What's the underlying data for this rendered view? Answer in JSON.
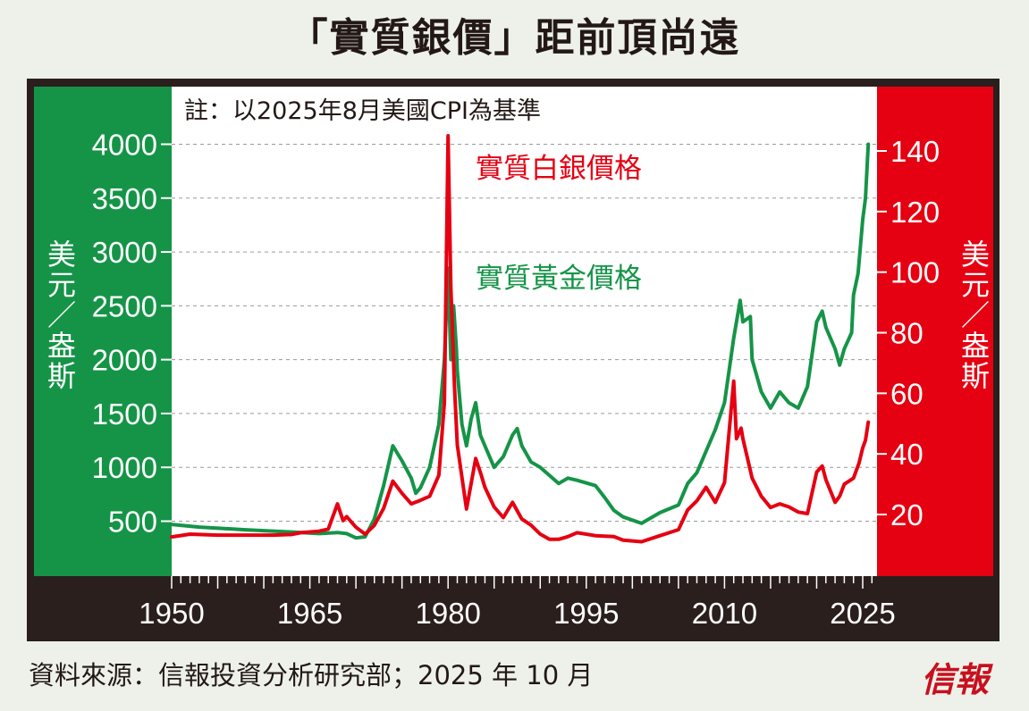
{
  "header": {
    "title": "「實質銀價」距前頂尚遠"
  },
  "note": "註：以2025年8月美國CPI為基準",
  "footer": {
    "source": "資料來源：信報投資分析研究部；2025 年 10 月",
    "logo": "信報"
  },
  "colors": {
    "gold": "#159447",
    "silver": "#e50012",
    "frame": "#2a1f1d",
    "background": "#edf1ea"
  },
  "chart_data": {
    "type": "line",
    "title": "「實質銀價」距前頂尚遠",
    "note": "註：以2025年8月美國CPI為基準",
    "xlim": [
      1950,
      2027
    ],
    "x_ticks": [
      1950,
      1965,
      1980,
      1995,
      2010,
      2025
    ],
    "left_axis": {
      "label": "美元／盎斯",
      "ylim": [
        300,
        4050
      ],
      "ticks": [
        500,
        1000,
        1500,
        2000,
        2500,
        3000,
        3500,
        4000
      ]
    },
    "right_axis": {
      "label": "美元／盎斯",
      "ylim": [
        9.9,
        154.3
      ],
      "ticks": [
        20,
        40,
        60,
        80,
        100,
        120,
        140
      ]
    },
    "grid": true,
    "series": [
      {
        "name": "實質黃金價格",
        "axis": "left",
        "color": "#159447",
        "points": [
          [
            1950,
            470
          ],
          [
            1953,
            445
          ],
          [
            1958,
            420
          ],
          [
            1963,
            400
          ],
          [
            1966,
            385
          ],
          [
            1968,
            395
          ],
          [
            1969,
            385
          ],
          [
            1970,
            345
          ],
          [
            1971,
            355
          ],
          [
            1972,
            520
          ],
          [
            1973,
            830
          ],
          [
            1974,
            1200
          ],
          [
            1974.5,
            1130
          ],
          [
            1975,
            1060
          ],
          [
            1976,
            900
          ],
          [
            1976.5,
            760
          ],
          [
            1977,
            810
          ],
          [
            1978,
            1000
          ],
          [
            1979,
            1400
          ],
          [
            1979.6,
            2000
          ],
          [
            1980.0,
            2850
          ],
          [
            1980.3,
            2000
          ],
          [
            1980.6,
            2500
          ],
          [
            1980.9,
            2100
          ],
          [
            1981,
            1900
          ],
          [
            1981.5,
            1400
          ],
          [
            1982,
            1200
          ],
          [
            1982.5,
            1450
          ],
          [
            1983,
            1600
          ],
          [
            1983.5,
            1300
          ],
          [
            1984,
            1200
          ],
          [
            1985,
            1000
          ],
          [
            1986,
            1100
          ],
          [
            1987,
            1300
          ],
          [
            1987.5,
            1360
          ],
          [
            1988,
            1200
          ],
          [
            1989,
            1050
          ],
          [
            1990,
            1000
          ],
          [
            1992,
            850
          ],
          [
            1993,
            900
          ],
          [
            1994,
            880
          ],
          [
            1996,
            830
          ],
          [
            1997,
            720
          ],
          [
            1998,
            600
          ],
          [
            1999,
            540
          ],
          [
            2001,
            480
          ],
          [
            2003,
            580
          ],
          [
            2005,
            650
          ],
          [
            2006,
            850
          ],
          [
            2007,
            950
          ],
          [
            2008,
            1150
          ],
          [
            2009,
            1350
          ],
          [
            2010,
            1600
          ],
          [
            2011,
            2200
          ],
          [
            2011.7,
            2550
          ],
          [
            2012,
            2350
          ],
          [
            2012.8,
            2400
          ],
          [
            2013,
            2000
          ],
          [
            2014,
            1700
          ],
          [
            2015,
            1550
          ],
          [
            2016,
            1700
          ],
          [
            2017,
            1600
          ],
          [
            2018,
            1550
          ],
          [
            2019,
            1750
          ],
          [
            2020,
            2350
          ],
          [
            2020.6,
            2450
          ],
          [
            2021,
            2300
          ],
          [
            2022,
            2100
          ],
          [
            2022.5,
            1950
          ],
          [
            2023,
            2100
          ],
          [
            2023.8,
            2250
          ],
          [
            2024,
            2600
          ],
          [
            2024.5,
            2800
          ],
          [
            2025.0,
            3300
          ],
          [
            2025.3,
            3500
          ],
          [
            2025.6,
            4000
          ]
        ]
      },
      {
        "name": "實質白銀價格",
        "axis": "right",
        "color": "#e50012",
        "points": [
          [
            1950,
            12.6
          ],
          [
            1952,
            13.5
          ],
          [
            1955,
            13.2
          ],
          [
            1958,
            13.2
          ],
          [
            1961,
            13.2
          ],
          [
            1963,
            13.4
          ],
          [
            1964,
            14.0
          ],
          [
            1966,
            14.5
          ],
          [
            1967,
            15.2
          ],
          [
            1968,
            23.5
          ],
          [
            1968.6,
            18.0
          ],
          [
            1969,
            19.3
          ],
          [
            1970,
            15.8
          ],
          [
            1971,
            13.5
          ],
          [
            1972,
            16.4
          ],
          [
            1973,
            22.0
          ],
          [
            1974,
            31.0
          ],
          [
            1975,
            27.0
          ],
          [
            1976,
            23.5
          ],
          [
            1977,
            24.7
          ],
          [
            1978,
            26.0
          ],
          [
            1979,
            33.0
          ],
          [
            1979.6,
            57.0
          ],
          [
            1980.0,
            145.0
          ],
          [
            1980.3,
            95.0
          ],
          [
            1980.7,
            62.0
          ],
          [
            1981,
            43.0
          ],
          [
            1982,
            21.8
          ],
          [
            1983,
            38.5
          ],
          [
            1983.6,
            33.0
          ],
          [
            1984,
            29.0
          ],
          [
            1985,
            22.5
          ],
          [
            1986,
            19.0
          ],
          [
            1987,
            24.0
          ],
          [
            1988,
            18.5
          ],
          [
            1989,
            16.5
          ],
          [
            1990,
            13.5
          ],
          [
            1991,
            11.8
          ],
          [
            1992,
            11.8
          ],
          [
            1993,
            12.7
          ],
          [
            1994,
            14.0
          ],
          [
            1996,
            13.0
          ],
          [
            1998,
            12.7
          ],
          [
            1999,
            11.5
          ],
          [
            2001,
            11.0
          ],
          [
            2003,
            13.0
          ],
          [
            2005,
            15.0
          ],
          [
            2006,
            21.5
          ],
          [
            2007,
            24.5
          ],
          [
            2008,
            29.0
          ],
          [
            2009,
            24.0
          ],
          [
            2010,
            30.5
          ],
          [
            2011,
            64.0
          ],
          [
            2011.3,
            45.0
          ],
          [
            2011.8,
            48.5
          ],
          [
            2012,
            45.0
          ],
          [
            2013,
            32.0
          ],
          [
            2014,
            26.0
          ],
          [
            2015,
            22.3
          ],
          [
            2016,
            23.5
          ],
          [
            2017,
            22.5
          ],
          [
            2018,
            20.8
          ],
          [
            2019,
            20.3
          ],
          [
            2020,
            34.0
          ],
          [
            2020.6,
            36.0
          ],
          [
            2021,
            31.5
          ],
          [
            2022,
            24.0
          ],
          [
            2022.5,
            26.0
          ],
          [
            2023,
            30.0
          ],
          [
            2024,
            32.0
          ],
          [
            2024.6,
            37.0
          ],
          [
            2025,
            42.0
          ],
          [
            2025.3,
            44.5
          ],
          [
            2025.6,
            50.5
          ]
        ]
      }
    ]
  }
}
